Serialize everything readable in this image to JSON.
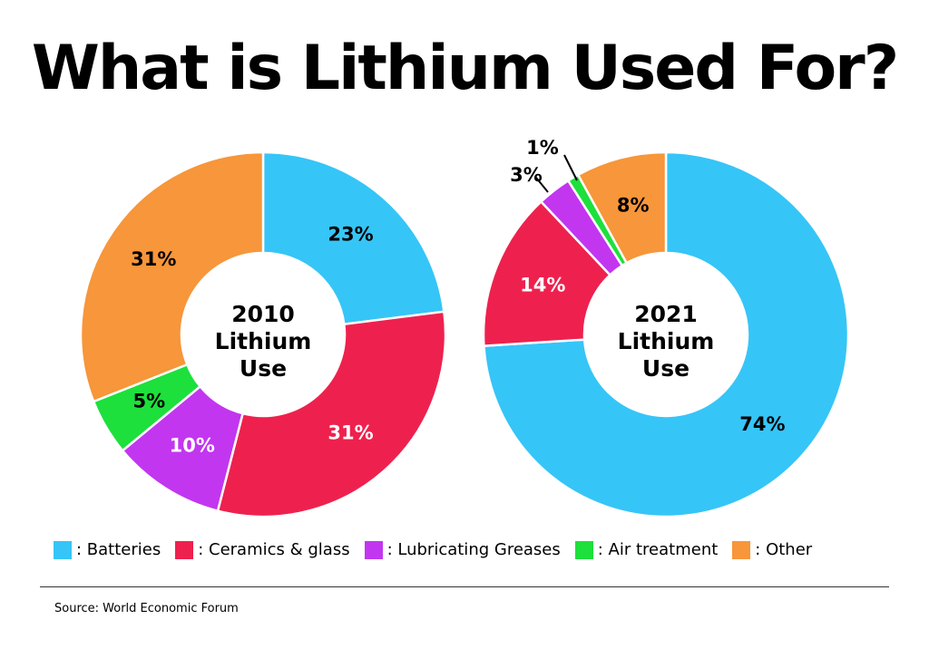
{
  "title": "What is Lithium Used For?",
  "source": "Source: World Economic Forum",
  "chart_data": [
    {
      "type": "pie",
      "center_label": [
        "2010",
        "Lithium",
        "Use"
      ],
      "categories": [
        "Batteries",
        "Ceramics & glass",
        "Lubricating Greases",
        "Air treatment",
        "Other"
      ],
      "values": [
        23,
        31,
        10,
        5,
        31
      ],
      "labels": [
        "23%",
        "31%",
        "10%",
        "5%",
        "31%"
      ],
      "colors": [
        "#36C5F7",
        "#EE214E",
        "#C236F0",
        "#1DE03C",
        "#F7963A"
      ],
      "label_colors": [
        "#000000",
        "#ffffff",
        "#ffffff",
        "#000000",
        "#000000"
      ]
    },
    {
      "type": "pie",
      "center_label": [
        "2021",
        "Lithium",
        "Use"
      ],
      "categories": [
        "Batteries",
        "Ceramics & glass",
        "Lubricating Greases",
        "Air treatment",
        "Other"
      ],
      "values": [
        74,
        14,
        3,
        1,
        8
      ],
      "labels": [
        "74%",
        "14%",
        "3%",
        "1%",
        "8%"
      ],
      "colors": [
        "#36C5F7",
        "#EE214E",
        "#C236F0",
        "#1DE03C",
        "#F7963A"
      ],
      "label_colors": [
        "#000000",
        "#ffffff",
        "#000000",
        "#000000",
        "#000000"
      ]
    }
  ],
  "legend": [
    {
      "label": ": Batteries",
      "color": "#36C5F7"
    },
    {
      "label": ": Ceramics & glass",
      "color": "#EE214E"
    },
    {
      "label": ": Lubricating Greases",
      "color": "#C236F0"
    },
    {
      "label": ": Air treatment",
      "color": "#1DE03C"
    },
    {
      "label": ": Other",
      "color": "#F7963A"
    }
  ]
}
